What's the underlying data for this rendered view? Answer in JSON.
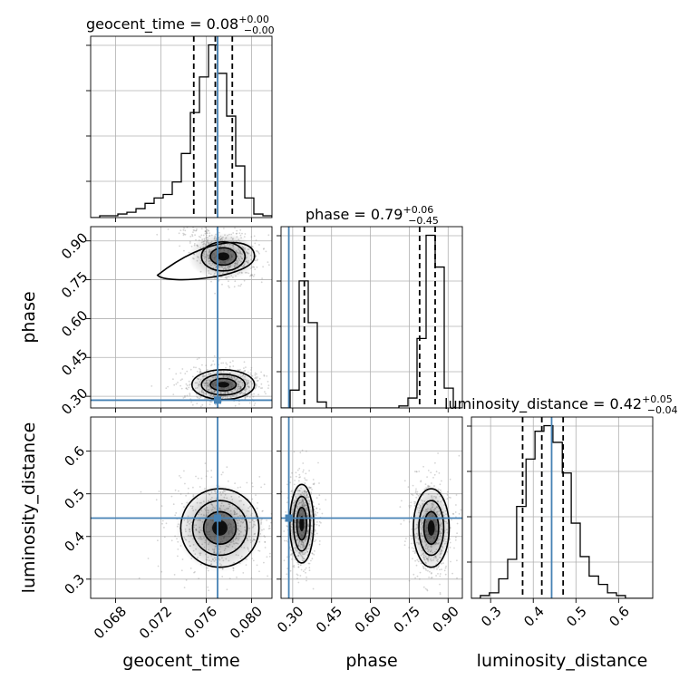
{
  "chart_data": {
    "type": "corner",
    "parameters": [
      "geocent_time",
      "phase",
      "luminosity_distance"
    ],
    "truth_color": "#4682b4",
    "titles": [
      {
        "param": "geocent_time",
        "base": "geocent_time = 0.08",
        "plus": "+0.00",
        "minus": "−0.00"
      },
      {
        "param": "phase",
        "base": "phase = 0.79",
        "plus": "+0.06",
        "minus": "−0.45"
      },
      {
        "param": "luminosity_distance",
        "base": "luminosity_distance = 0.42",
        "plus": "+0.05",
        "minus": "−0.04"
      }
    ],
    "axes": {
      "geocent_time": {
        "range": [
          0.0658,
          0.0818
        ],
        "ticks": [
          0.068,
          0.072,
          0.076,
          0.08
        ],
        "tick_labels": [
          "0.068",
          "0.072",
          "0.076",
          "0.080"
        ],
        "truth": 0.077,
        "quantiles": [
          0.0749,
          0.0768,
          0.0783
        ]
      },
      "phase": {
        "range": [
          0.255,
          0.955
        ],
        "ticks": [
          0.3,
          0.45,
          0.6,
          0.75,
          0.9
        ],
        "tick_labels": [
          "0.30",
          "0.45",
          "0.60",
          "0.75",
          "0.90"
        ],
        "truth": 0.285,
        "quantiles": [
          0.345,
          0.79,
          0.85
        ]
      },
      "luminosity_distance": {
        "range": [
          0.255,
          0.68
        ],
        "ticks": [
          0.3,
          0.4,
          0.5,
          0.6
        ],
        "tick_labels": [
          "0.3",
          "0.4",
          "0.5",
          "0.6"
        ],
        "truth": 0.443,
        "quantiles": [
          0.375,
          0.42,
          0.47
        ]
      }
    },
    "histograms": {
      "geocent_time": {
        "edges": [
          0.0658,
          0.0666,
          0.0674,
          0.0682,
          0.069,
          0.0698,
          0.0706,
          0.0714,
          0.0722,
          0.073,
          0.0738,
          0.0746,
          0.0754,
          0.0762,
          0.077,
          0.0778,
          0.0786,
          0.0794,
          0.0802,
          0.081,
          0.0818
        ],
        "counts": [
          0.0,
          0.01,
          0.01,
          0.02,
          0.03,
          0.05,
          0.08,
          0.11,
          0.13,
          0.2,
          0.36,
          0.59,
          0.79,
          0.97,
          0.81,
          0.57,
          0.29,
          0.11,
          0.02,
          0.01
        ]
      },
      "phase": {
        "edges": [
          0.255,
          0.29,
          0.325,
          0.36,
          0.395,
          0.43,
          0.465,
          0.5,
          0.535,
          0.57,
          0.605,
          0.64,
          0.675,
          0.71,
          0.745,
          0.78,
          0.815,
          0.85,
          0.885,
          0.92,
          0.955
        ],
        "counts": [
          0.0,
          0.09,
          0.64,
          0.43,
          0.03,
          0.0,
          0.0,
          0.0,
          0.0,
          0.0,
          0.0,
          0.0,
          0.0,
          0.01,
          0.05,
          0.35,
          0.87,
          0.71,
          0.1,
          0.0
        ]
      },
      "luminosity_distance": {
        "edges": [
          0.255,
          0.276,
          0.297,
          0.319,
          0.34,
          0.361,
          0.383,
          0.404,
          0.425,
          0.446,
          0.468,
          0.489,
          0.51,
          0.531,
          0.553,
          0.574,
          0.595,
          0.616,
          0.638,
          0.659,
          0.68
        ],
        "counts": [
          0.0,
          0.01,
          0.02,
          0.07,
          0.14,
          0.33,
          0.5,
          0.6,
          0.62,
          0.56,
          0.45,
          0.27,
          0.15,
          0.08,
          0.05,
          0.02,
          0.01,
          0.0,
          0.0,
          0.0
        ]
      }
    },
    "density_modes": [
      {
        "pair": [
          "geocent_time",
          "phase"
        ],
        "modes": [
          {
            "center": [
              0.0775,
              0.84
            ],
            "spread": [
              0.0012,
              0.035
            ],
            "tilt_note": "elongated toward lower geocent_time and phase"
          },
          {
            "center": [
              0.0775,
              0.345
            ],
            "spread": [
              0.0012,
              0.025
            ]
          }
        ]
      },
      {
        "pair": [
          "geocent_time",
          "luminosity_distance"
        ],
        "modes": [
          {
            "center": [
              0.0772,
              0.42
            ],
            "spread": [
              0.0015,
              0.04
            ]
          }
        ]
      },
      {
        "pair": [
          "phase",
          "luminosity_distance"
        ],
        "modes": [
          {
            "center": [
              0.335,
              0.43
            ],
            "spread": [
              0.02,
              0.04
            ]
          },
          {
            "center": [
              0.835,
              0.42
            ],
            "spread": [
              0.03,
              0.04
            ]
          }
        ]
      }
    ]
  }
}
